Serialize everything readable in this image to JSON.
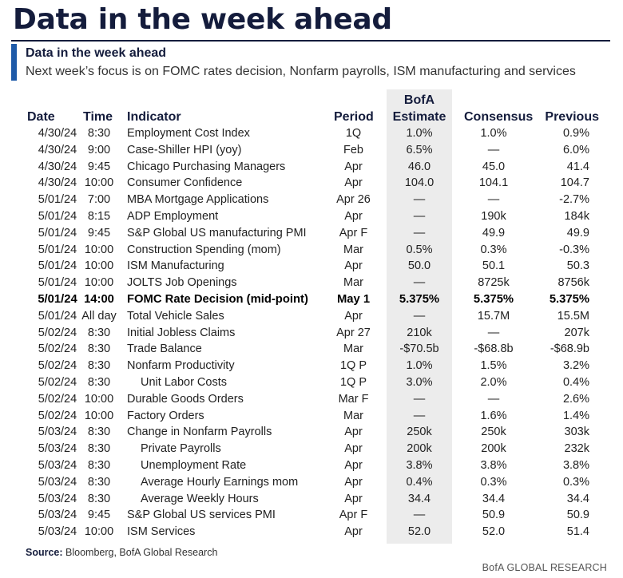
{
  "title": "Data in the week ahead",
  "subtitle": "Data in the week ahead",
  "description": "Next week’s focus is on FOMC rates decision, Nonfarm payrolls, ISM manufacturing and services",
  "headers": {
    "date": "Date",
    "time": "Time",
    "indicator": "Indicator",
    "period": "Period",
    "estimate_line1": "BofA",
    "estimate_line2": "Estimate",
    "consensus": "Consensus",
    "previous": "Previous"
  },
  "rows": [
    {
      "date": "4/30/24",
      "time": "8:30",
      "indicator": "Employment Cost Index",
      "period": "1Q",
      "estimate": "1.0%",
      "consensus": "1.0%",
      "previous": "0.9%"
    },
    {
      "date": "4/30/24",
      "time": "9:00",
      "indicator": "Case-Shiller HPI (yoy)",
      "period": "Feb",
      "estimate": "6.5%",
      "consensus": "—",
      "previous": "6.0%"
    },
    {
      "date": "4/30/24",
      "time": "9:45",
      "indicator": "Chicago Purchasing Managers",
      "period": "Apr",
      "estimate": "46.0",
      "consensus": "45.0",
      "previous": "41.4"
    },
    {
      "date": "4/30/24",
      "time": "10:00",
      "indicator": "Consumer Confidence",
      "period": "Apr",
      "estimate": "104.0",
      "consensus": "104.1",
      "previous": "104.7"
    },
    {
      "date": "5/01/24",
      "time": "7:00",
      "indicator": "MBA Mortgage Applications",
      "period": "Apr 26",
      "estimate": "—",
      "consensus": "—",
      "previous": "-2.7%"
    },
    {
      "date": "5/01/24",
      "time": "8:15",
      "indicator": "ADP Employment",
      "period": "Apr",
      "estimate": "—",
      "consensus": "190k",
      "previous": "184k"
    },
    {
      "date": "5/01/24",
      "time": "9:45",
      "indicator": "S&P Global US manufacturing PMI",
      "period": "Apr F",
      "estimate": "—",
      "consensus": "49.9",
      "previous": "49.9"
    },
    {
      "date": "5/01/24",
      "time": "10:00",
      "indicator": "Construction Spending (mom)",
      "period": "Mar",
      "estimate": "0.5%",
      "consensus": "0.3%",
      "previous": "-0.3%"
    },
    {
      "date": "5/01/24",
      "time": "10:00",
      "indicator": "ISM Manufacturing",
      "period": "Apr",
      "estimate": "50.0",
      "consensus": "50.1",
      "previous": "50.3"
    },
    {
      "date": "5/01/24",
      "time": "10:00",
      "indicator": "JOLTS Job Openings",
      "period": "Mar",
      "estimate": "—",
      "consensus": "8725k",
      "previous": "8756k"
    },
    {
      "date": "5/01/24",
      "time": "14:00",
      "indicator": "FOMC Rate Decision (mid-point)",
      "period": "May 1",
      "estimate": "5.375%",
      "consensus": "5.375%",
      "previous": "5.375%",
      "bold": true
    },
    {
      "date": "5/01/24",
      "time": "All day",
      "indicator": "Total Vehicle Sales",
      "period": "Apr",
      "estimate": "—",
      "consensus": "15.7M",
      "previous": "15.5M"
    },
    {
      "date": "5/02/24",
      "time": "8:30",
      "indicator": "Initial Jobless Claims",
      "period": "Apr 27",
      "estimate": "210k",
      "consensus": "—",
      "previous": "207k"
    },
    {
      "date": "5/02/24",
      "time": "8:30",
      "indicator": "Trade Balance",
      "period": "Mar",
      "estimate": "-$70.5b",
      "consensus": "-$68.8b",
      "previous": "-$68.9b"
    },
    {
      "date": "5/02/24",
      "time": "8:30",
      "indicator": "Nonfarm Productivity",
      "period": "1Q P",
      "estimate": "1.0%",
      "consensus": "1.5%",
      "previous": "3.2%"
    },
    {
      "date": "5/02/24",
      "time": "8:30",
      "indicator": "Unit Labor Costs",
      "period": "1Q P",
      "estimate": "3.0%",
      "consensus": "2.0%",
      "previous": "0.4%",
      "indent": true
    },
    {
      "date": "5/02/24",
      "time": "10:00",
      "indicator": "Durable Goods Orders",
      "period": "Mar F",
      "estimate": "—",
      "consensus": "—",
      "previous": "2.6%"
    },
    {
      "date": "5/02/24",
      "time": "10:00",
      "indicator": "Factory Orders",
      "period": "Mar",
      "estimate": "—",
      "consensus": "1.6%",
      "previous": "1.4%"
    },
    {
      "date": "5/03/24",
      "time": "8:30",
      "indicator": "Change in Nonfarm Payrolls",
      "period": "Apr",
      "estimate": "250k",
      "consensus": "250k",
      "previous": "303k"
    },
    {
      "date": "5/03/24",
      "time": "8:30",
      "indicator": "Private Payrolls",
      "period": "Apr",
      "estimate": "200k",
      "consensus": "200k",
      "previous": "232k",
      "indent": true
    },
    {
      "date": "5/03/24",
      "time": "8:30",
      "indicator": "Unemployment Rate",
      "period": "Apr",
      "estimate": "3.8%",
      "consensus": "3.8%",
      "previous": "3.8%",
      "indent": true
    },
    {
      "date": "5/03/24",
      "time": "8:30",
      "indicator": "Average Hourly Earnings mom",
      "period": "Apr",
      "estimate": "0.4%",
      "consensus": "0.3%",
      "previous": "0.3%",
      "indent": true
    },
    {
      "date": "5/03/24",
      "time": "8:30",
      "indicator": "Average Weekly Hours",
      "period": "Apr",
      "estimate": "34.4",
      "consensus": "34.4",
      "previous": "34.4",
      "indent": true
    },
    {
      "date": "5/03/24",
      "time": "9:45",
      "indicator": "S&P Global US services PMI",
      "period": "Apr F",
      "estimate": "—",
      "consensus": "50.9",
      "previous": "50.9"
    },
    {
      "date": "5/03/24",
      "time": "10:00",
      "indicator": "ISM Services",
      "period": "Apr",
      "estimate": "52.0",
      "consensus": "52.0",
      "previous": "51.4"
    }
  ],
  "source": {
    "label": "Source:",
    "text": " Bloomberg, BofA Global Research"
  },
  "footer": "BofA GLOBAL RESEARCH",
  "colors": {
    "title": "#141c3c",
    "accent": "#1e5aa8",
    "estimate_shading": "#ececec"
  }
}
